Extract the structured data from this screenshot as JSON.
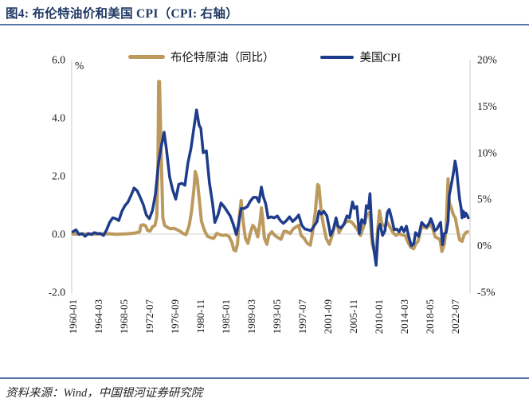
{
  "figure": {
    "title": "图4: 布伦特油价和美国 CPI（CPI: 右轴）",
    "source": "资料来源：Wind，中国银河证券研究院"
  },
  "colors": {
    "title_blue": "#1F3864",
    "divider_blue": "#5B76A8",
    "brent_line": "#BC9A5E",
    "cpi_line": "#1E3C8C",
    "axis_gray": "#D9D9D9",
    "label_black": "#1a1a1a"
  },
  "legend": {
    "items": [
      {
        "label": "布伦特原油（同比）",
        "color": "#BC9A5E"
      },
      {
        "label": "美国CPI",
        "color": "#1E3C8C"
      }
    ]
  },
  "chart_data": {
    "type": "line",
    "title": "布伦特油价和美国CPI（CPI：右轴）",
    "left_axis": {
      "unit": "%",
      "min": -2,
      "max": 6,
      "ticks": [
        "6.0",
        "4.0",
        "2.0",
        "0.0",
        "-2.0"
      ]
    },
    "right_axis": {
      "min": -5,
      "max": 20,
      "ticks": [
        "20%",
        "15%",
        "10%",
        "5%",
        "0%",
        "-5%"
      ]
    },
    "x_ticks": [
      "1960-01",
      "1964-03",
      "1968-05",
      "1972-07",
      "1976-09",
      "1980-11",
      "1985-01",
      "1989-03",
      "1993-05",
      "1997-07",
      "2001-09",
      "2005-11",
      "2010-01",
      "2014-03",
      "2018-05",
      "2022-07"
    ],
    "x_range": [
      1959.8,
      2024.9
    ],
    "gridline_at_left_value": 0,
    "series": [
      {
        "name": "布伦特原油（同比）",
        "axis": "left",
        "color": "#BC9A5E",
        "width": 4,
        "points": [
          [
            1960,
            0
          ],
          [
            1962,
            0
          ],
          [
            1964,
            0
          ],
          [
            1966,
            0.01
          ],
          [
            1967,
            -0.01
          ],
          [
            1968,
            0
          ],
          [
            1969,
            0.01
          ],
          [
            1970,
            0.03
          ],
          [
            1970.6,
            0.06
          ],
          [
            1970.9,
            0.08
          ],
          [
            1971.1,
            0.3
          ],
          [
            1971.5,
            0.32
          ],
          [
            1971.9,
            0.28
          ],
          [
            1972.2,
            0.12
          ],
          [
            1972.6,
            0.1
          ],
          [
            1973,
            0.25
          ],
          [
            1973.4,
            0.3
          ],
          [
            1973.7,
            0.6
          ],
          [
            1973.9,
            2.5
          ],
          [
            1974,
            5.25
          ],
          [
            1974.15,
            5.25
          ],
          [
            1974.4,
            3.0
          ],
          [
            1974.7,
            0.55
          ],
          [
            1975,
            0.3
          ],
          [
            1975.5,
            0.22
          ],
          [
            1976,
            0.18
          ],
          [
            1976.5,
            0.2
          ],
          [
            1977,
            0.15
          ],
          [
            1977.5,
            0.1
          ],
          [
            1978,
            0.02
          ],
          [
            1978.5,
            -0.02
          ],
          [
            1979,
            0.3
          ],
          [
            1979.4,
            0.8
          ],
          [
            1979.8,
            1.6
          ],
          [
            1980,
            2.15
          ],
          [
            1980.3,
            1.9
          ],
          [
            1980.7,
            1.1
          ],
          [
            1981,
            0.45
          ],
          [
            1981.5,
            0.12
          ],
          [
            1982,
            -0.08
          ],
          [
            1982.5,
            -0.12
          ],
          [
            1983,
            -0.15
          ],
          [
            1983.5,
            0.02
          ],
          [
            1984,
            -0.02
          ],
          [
            1984.5,
            -0.05
          ],
          [
            1985,
            -0.03
          ],
          [
            1985.5,
            -0.08
          ],
          [
            1986,
            -0.3
          ],
          [
            1986.3,
            -0.55
          ],
          [
            1986.6,
            -0.58
          ],
          [
            1986.9,
            -0.35
          ],
          [
            1987.2,
            0.6
          ],
          [
            1987.5,
            1.15
          ],
          [
            1987.8,
            0.45
          ],
          [
            1988.2,
            -0.15
          ],
          [
            1988.6,
            -0.32
          ],
          [
            1989,
            0.05
          ],
          [
            1989.4,
            0.3
          ],
          [
            1989.8,
            0.18
          ],
          [
            1990.2,
            -0.1
          ],
          [
            1990.6,
            0.45
          ],
          [
            1990.8,
            0.9
          ],
          [
            1991,
            0.55
          ],
          [
            1991.3,
            -0.15
          ],
          [
            1991.7,
            -0.35
          ],
          [
            1992,
            -0.05
          ],
          [
            1992.5,
            0.08
          ],
          [
            1993,
            -0.05
          ],
          [
            1993.5,
            -0.12
          ],
          [
            1994,
            -0.18
          ],
          [
            1994.5,
            0.1
          ],
          [
            1995,
            0.08
          ],
          [
            1995.5,
            0.02
          ],
          [
            1996,
            0.18
          ],
          [
            1996.5,
            0.25
          ],
          [
            1996.9,
            0.3
          ],
          [
            1997.3,
            -0.05
          ],
          [
            1997.8,
            -0.15
          ],
          [
            1998.3,
            -0.32
          ],
          [
            1998.8,
            -0.38
          ],
          [
            1999.2,
            0.1
          ],
          [
            1999.6,
            0.75
          ],
          [
            2000,
            1.7
          ],
          [
            2000.2,
            1.65
          ],
          [
            2000.6,
            0.7
          ],
          [
            2001,
            0.25
          ],
          [
            2001.4,
            -0.15
          ],
          [
            2001.9,
            -0.35
          ],
          [
            2002.3,
            -0.1
          ],
          [
            2002.8,
            0.35
          ],
          [
            2003.1,
            0.45
          ],
          [
            2003.5,
            0.05
          ],
          [
            2004,
            0.25
          ],
          [
            2004.5,
            0.4
          ],
          [
            2005,
            0.45
          ],
          [
            2005.5,
            0.42
          ],
          [
            2006,
            0.3
          ],
          [
            2006.5,
            0.15
          ],
          [
            2007,
            -0.05
          ],
          [
            2007.5,
            0.25
          ],
          [
            2008,
            0.65
          ],
          [
            2008.5,
            0.75
          ],
          [
            2008.9,
            -0.3
          ],
          [
            2009.2,
            -0.55
          ],
          [
            2009.6,
            -0.45
          ],
          [
            2009.9,
            0.35
          ],
          [
            2010.1,
            0.8
          ],
          [
            2010.5,
            0.35
          ],
          [
            2011,
            0.25
          ],
          [
            2011.4,
            0.4
          ],
          [
            2011.8,
            0.25
          ],
          [
            2012.3,
            0.05
          ],
          [
            2012.8,
            -0.05
          ],
          [
            2013.3,
            0.02
          ],
          [
            2013.8,
            -0.03
          ],
          [
            2014.3,
            -0.05
          ],
          [
            2014.8,
            -0.3
          ],
          [
            2015.2,
            -0.45
          ],
          [
            2015.7,
            -0.5
          ],
          [
            2016,
            -0.35
          ],
          [
            2016.4,
            -0.25
          ],
          [
            2016.9,
            0.2
          ],
          [
            2017.3,
            0.25
          ],
          [
            2017.8,
            0.2
          ],
          [
            2018.3,
            0.35
          ],
          [
            2018.8,
            0.2
          ],
          [
            2019.2,
            -0.1
          ],
          [
            2019.7,
            -0.15
          ],
          [
            2020,
            -0.2
          ],
          [
            2020.3,
            -0.6
          ],
          [
            2020.7,
            -0.35
          ],
          [
            2021,
            0.2
          ],
          [
            2021.3,
            1.9
          ],
          [
            2021.5,
            1.1
          ],
          [
            2021.9,
            0.85
          ],
          [
            2022.2,
            0.65
          ],
          [
            2022.5,
            0.55
          ],
          [
            2022.9,
            0.1
          ],
          [
            2023.2,
            -0.2
          ],
          [
            2023.6,
            -0.25
          ],
          [
            2023.9,
            -0.05
          ],
          [
            2024.2,
            0.05
          ],
          [
            2024.5,
            0.08
          ]
        ]
      },
      {
        "name": "美国CPI",
        "axis": "right",
        "color": "#1E3C8C",
        "width": 3.5,
        "points": [
          [
            1960,
            1.5
          ],
          [
            1960.5,
            1.7
          ],
          [
            1961,
            1.2
          ],
          [
            1961.5,
            1.3
          ],
          [
            1962,
            1.0
          ],
          [
            1962.5,
            1.3
          ],
          [
            1963,
            1.2
          ],
          [
            1963.5,
            1.4
          ],
          [
            1964,
            1.3
          ],
          [
            1964.5,
            1.3
          ],
          [
            1965,
            1.1
          ],
          [
            1965.5,
            1.7
          ],
          [
            1966,
            2.5
          ],
          [
            1966.5,
            3.0
          ],
          [
            1967,
            2.9
          ],
          [
            1967.5,
            2.7
          ],
          [
            1968,
            3.7
          ],
          [
            1968.5,
            4.3
          ],
          [
            1969,
            4.7
          ],
          [
            1969.5,
            5.4
          ],
          [
            1970,
            6.2
          ],
          [
            1970.5,
            5.9
          ],
          [
            1971,
            5.2
          ],
          [
            1971.5,
            4.4
          ],
          [
            1972,
            3.3
          ],
          [
            1972.5,
            2.9
          ],
          [
            1973,
            3.8
          ],
          [
            1973.5,
            5.6
          ],
          [
            1974,
            9.0
          ],
          [
            1974.5,
            10.9
          ],
          [
            1974.9,
            12.2
          ],
          [
            1975.3,
            10.3
          ],
          [
            1975.8,
            7.4
          ],
          [
            1976.3,
            6.0
          ],
          [
            1976.8,
            5.0
          ],
          [
            1977.3,
            6.6
          ],
          [
            1977.8,
            6.7
          ],
          [
            1978.3,
            6.5
          ],
          [
            1978.8,
            8.9
          ],
          [
            1979.3,
            10.5
          ],
          [
            1979.8,
            12.8
          ],
          [
            1980.2,
            14.6
          ],
          [
            1980.6,
            13.0
          ],
          [
            1980.9,
            12.6
          ],
          [
            1981.3,
            10.0
          ],
          [
            1981.8,
            10.2
          ],
          [
            1982.3,
            6.8
          ],
          [
            1982.8,
            4.6
          ],
          [
            1983.2,
            2.5
          ],
          [
            1983.7,
            3.3
          ],
          [
            1984.2,
            4.6
          ],
          [
            1984.7,
            4.2
          ],
          [
            1985.2,
            3.7
          ],
          [
            1985.7,
            3.2
          ],
          [
            1986.2,
            2.3
          ],
          [
            1986.7,
            1.2
          ],
          [
            1987,
            2.1
          ],
          [
            1987.5,
            4.0
          ],
          [
            1988,
            4.0
          ],
          [
            1988.5,
            4.2
          ],
          [
            1989,
            4.8
          ],
          [
            1989.5,
            5.2
          ],
          [
            1990,
            5.2
          ],
          [
            1990.4,
            4.7
          ],
          [
            1990.8,
            6.3
          ],
          [
            1991.1,
            5.3
          ],
          [
            1991.5,
            4.5
          ],
          [
            1991.9,
            3.0
          ],
          [
            1992.4,
            3.1
          ],
          [
            1992.9,
            3.0
          ],
          [
            1993.4,
            3.2
          ],
          [
            1993.9,
            2.7
          ],
          [
            1994.4,
            2.4
          ],
          [
            1994.9,
            2.7
          ],
          [
            1995.4,
            3.1
          ],
          [
            1995.9,
            2.6
          ],
          [
            1996.4,
            2.9
          ],
          [
            1996.9,
            3.3
          ],
          [
            1997.4,
            2.2
          ],
          [
            1997.9,
            1.8
          ],
          [
            1998.4,
            1.7
          ],
          [
            1998.9,
            1.6
          ],
          [
            1999.4,
            2.1
          ],
          [
            1999.9,
            2.6
          ],
          [
            2000.2,
            3.7
          ],
          [
            2000.6,
            3.4
          ],
          [
            2001,
            3.7
          ],
          [
            2001.5,
            3.2
          ],
          [
            2001.9,
            1.9
          ],
          [
            2002.1,
            1.1
          ],
          [
            2002.6,
            1.8
          ],
          [
            2003,
            3.0
          ],
          [
            2003.3,
            2.1
          ],
          [
            2003.8,
            1.9
          ],
          [
            2004.3,
            2.3
          ],
          [
            2004.8,
            3.2
          ],
          [
            2005.2,
            3.0
          ],
          [
            2005.7,
            4.7
          ],
          [
            2006,
            4.0
          ],
          [
            2006.4,
            4.2
          ],
          [
            2006.8,
            1.3
          ],
          [
            2007.2,
            2.8
          ],
          [
            2007.7,
            2.4
          ],
          [
            2007.95,
            4.3
          ],
          [
            2008.3,
            4.0
          ],
          [
            2008.55,
            5.6
          ],
          [
            2008.9,
            1.1
          ],
          [
            2009.1,
            0.0
          ],
          [
            2009.55,
            -2.1
          ],
          [
            2009.9,
            1.8
          ],
          [
            2010.2,
            2.3
          ],
          [
            2010.6,
            1.1
          ],
          [
            2011,
            1.6
          ],
          [
            2011.4,
            3.6
          ],
          [
            2011.7,
            3.9
          ],
          [
            2012.1,
            2.9
          ],
          [
            2012.5,
            1.7
          ],
          [
            2012.9,
            1.8
          ],
          [
            2013.3,
            1.5
          ],
          [
            2013.7,
            2.0
          ],
          [
            2014.1,
            1.5
          ],
          [
            2014.5,
            2.1
          ],
          [
            2014.95,
            0.8
          ],
          [
            2015.3,
            0.0
          ],
          [
            2015.7,
            0.2
          ],
          [
            2016,
            1.4
          ],
          [
            2016.5,
            1.0
          ],
          [
            2017,
            2.5
          ],
          [
            2017.4,
            2.2
          ],
          [
            2017.8,
            2.0
          ],
          [
            2018.2,
            2.4
          ],
          [
            2018.5,
            2.9
          ],
          [
            2018.9,
            2.2
          ],
          [
            2019.1,
            1.6
          ],
          [
            2019.5,
            1.8
          ],
          [
            2019.9,
            2.3
          ],
          [
            2020.1,
            2.5
          ],
          [
            2020.4,
            0.1
          ],
          [
            2020.7,
            1.3
          ],
          [
            2021,
            1.4
          ],
          [
            2021.3,
            2.6
          ],
          [
            2021.5,
            5.4
          ],
          [
            2021.9,
            6.8
          ],
          [
            2022.2,
            7.9
          ],
          [
            2022.45,
            9.1
          ],
          [
            2022.7,
            8.2
          ],
          [
            2022.95,
            6.5
          ],
          [
            2023.2,
            5.0
          ],
          [
            2023.45,
            4.0
          ],
          [
            2023.6,
            3.0
          ],
          [
            2023.8,
            3.7
          ],
          [
            2024,
            3.1
          ],
          [
            2024.2,
            3.5
          ],
          [
            2024.4,
            3.3
          ],
          [
            2024.6,
            3.0
          ]
        ]
      }
    ]
  }
}
